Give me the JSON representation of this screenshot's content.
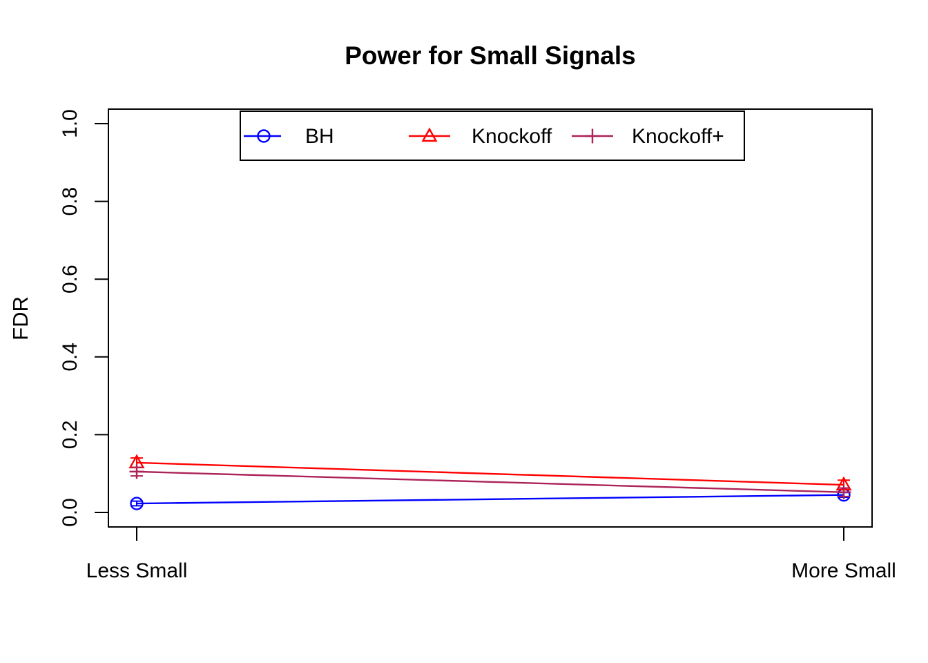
{
  "figure": {
    "title": "Power for Small Signals"
  },
  "chart_data": {
    "type": "line",
    "title": "Power for Small Signals",
    "xlabel": "",
    "ylabel": "FDR",
    "categories": [
      "Less Small",
      "More Small"
    ],
    "ylim": [
      0,
      1
    ],
    "yticks": [
      0.0,
      0.2,
      0.4,
      0.6,
      0.8,
      1.0
    ],
    "ytick_labels": [
      "0.0",
      "0.2",
      "0.4",
      "0.6",
      "0.8",
      "1.0"
    ],
    "grid": false,
    "legend_position": "top-inside",
    "background": "#FFFFFF",
    "axis_color": "#000000",
    "series": [
      {
        "name": "BH",
        "color": "#0000FF",
        "marker": "open-circle",
        "values": [
          0.023,
          0.045
        ],
        "stderr": [
          0.006,
          0.006
        ]
      },
      {
        "name": "Knockoff",
        "color": "#FF0000",
        "marker": "open-triangle",
        "values": [
          0.128,
          0.071
        ],
        "stderr": [
          0.012,
          0.012
        ]
      },
      {
        "name": "Knockoff+",
        "color": "#AC2358",
        "marker": "plus",
        "values": [
          0.105,
          0.052
        ],
        "stderr": [
          0.011,
          0.011
        ]
      }
    ]
  }
}
